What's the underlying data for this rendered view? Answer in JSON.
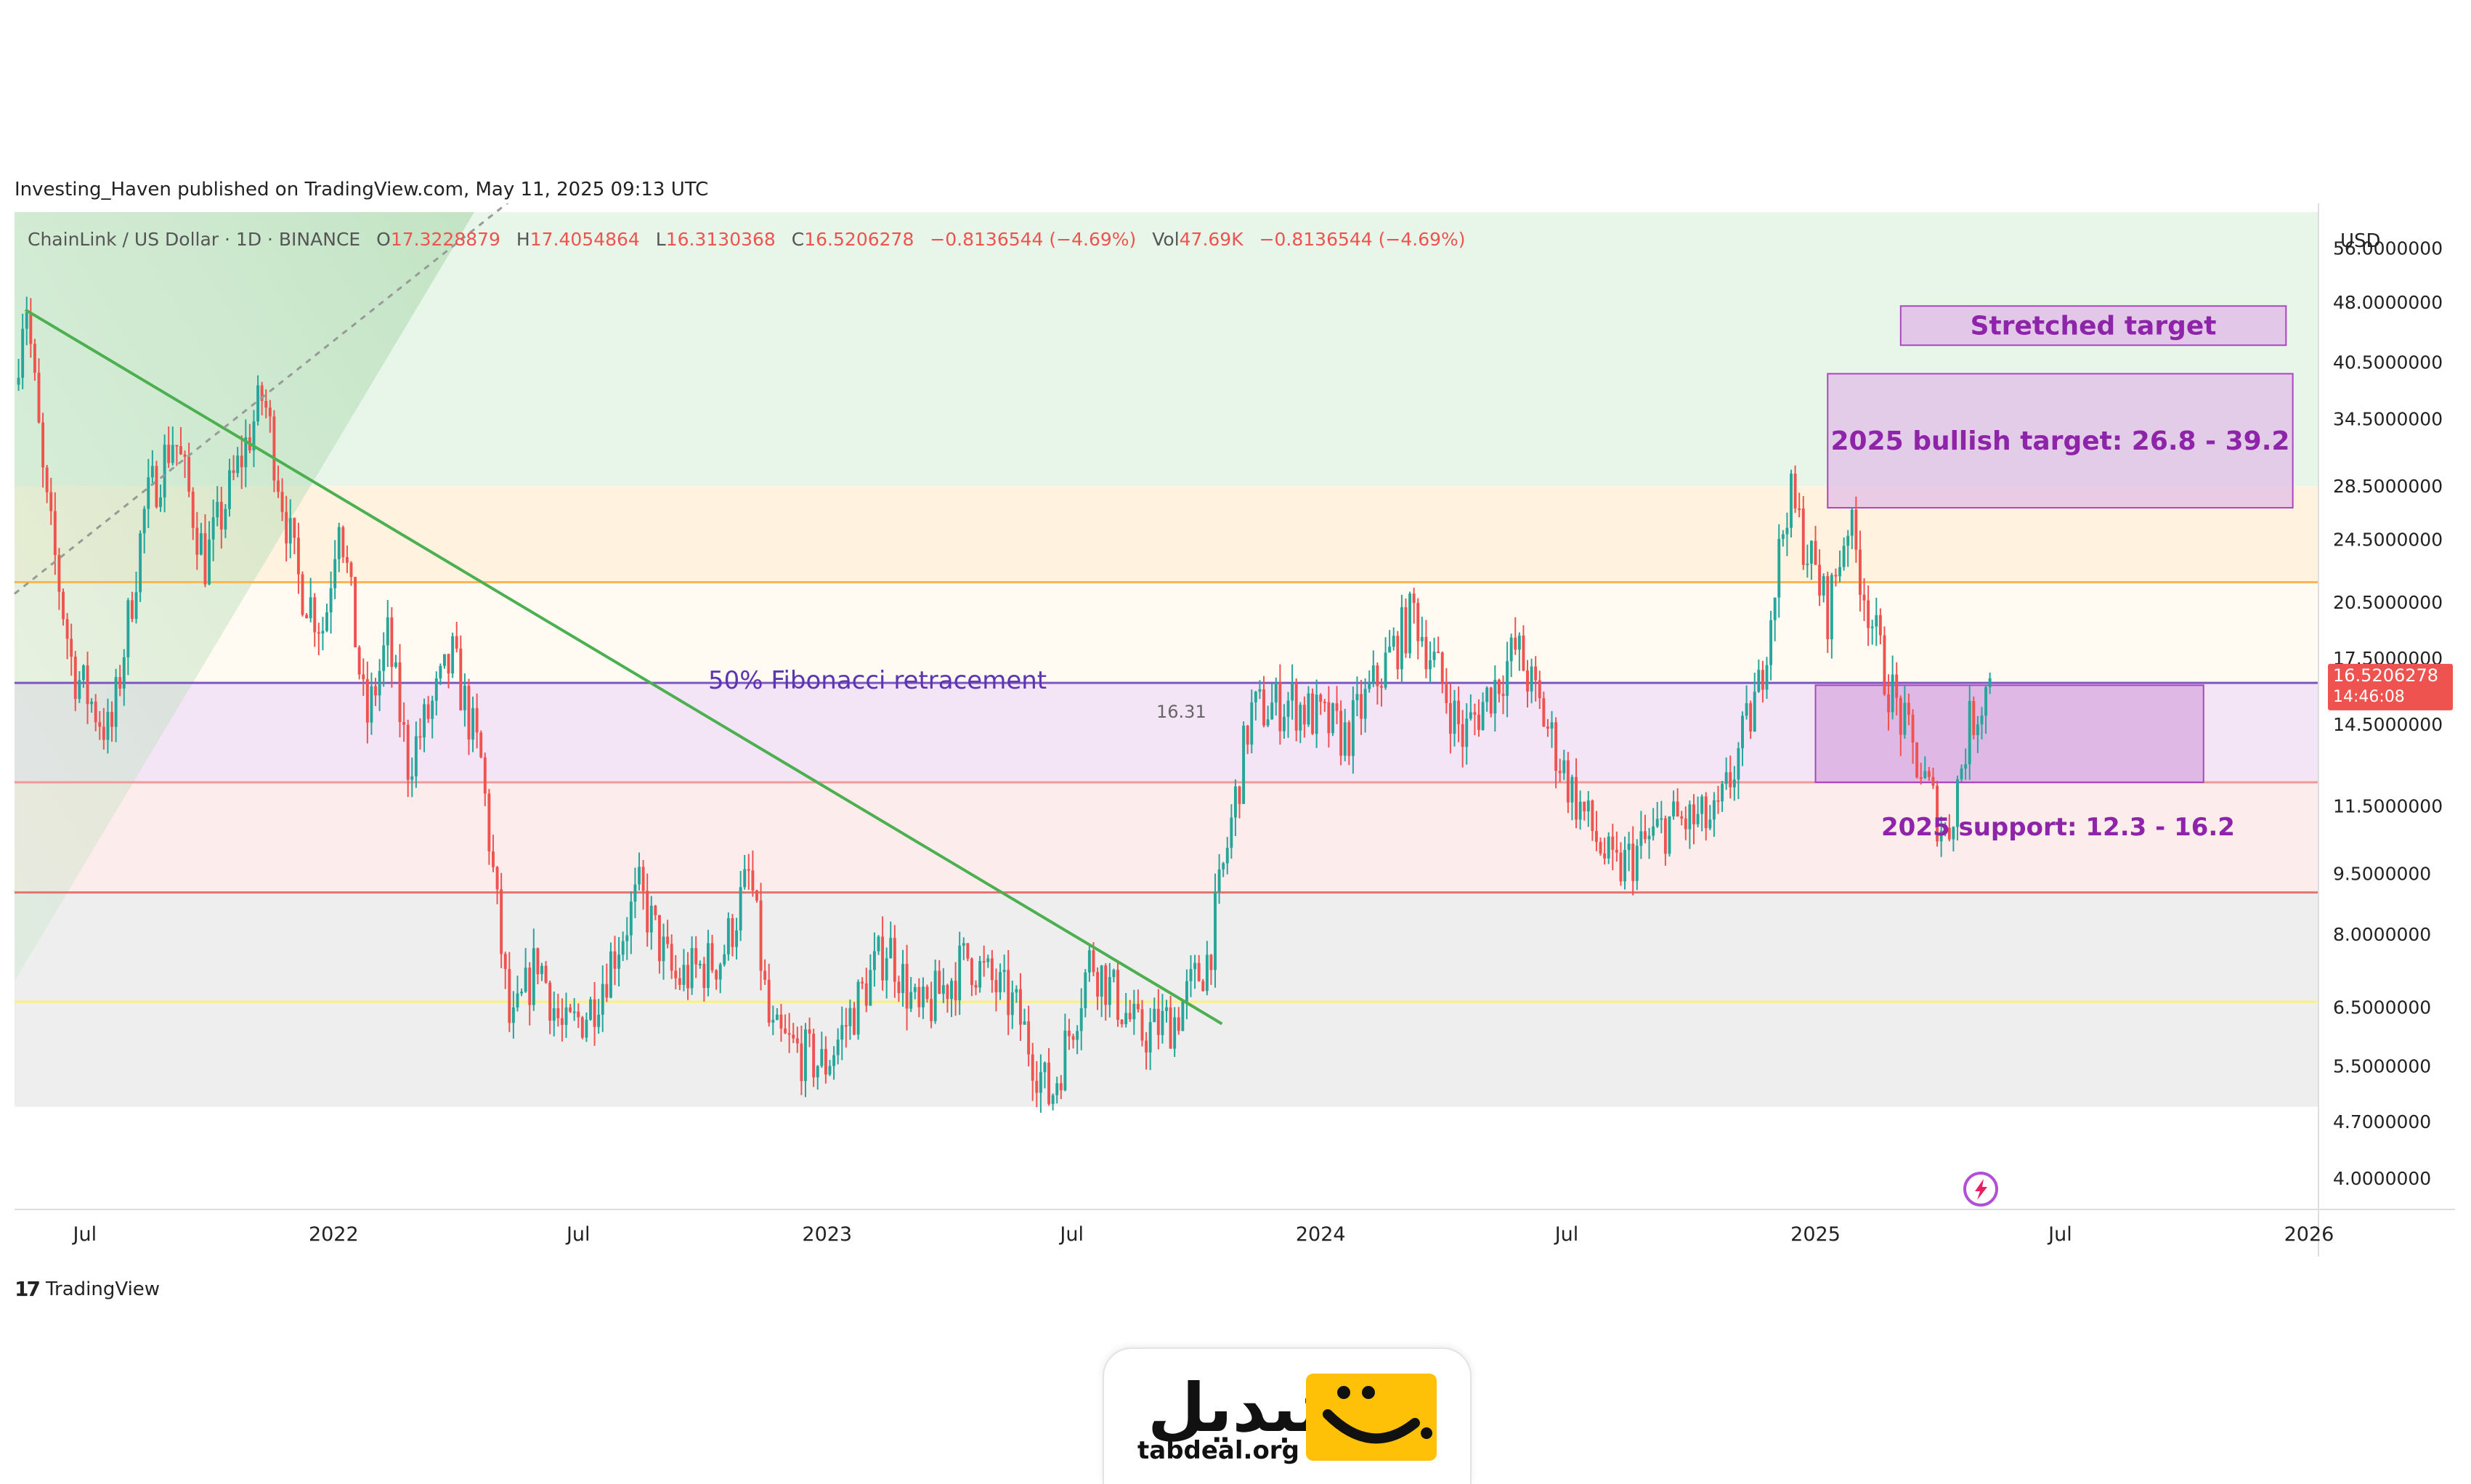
{
  "published": "Investing_Haven published on TradingView.com, May 11, 2025 09:13 UTC",
  "header": {
    "symbol": "ChainLink / US Dollar · 1D · BINANCE",
    "o_label": "O",
    "o": "17.3228879",
    "h_label": "H",
    "h": "17.4054864",
    "l_label": "L",
    "l": "16.3130368",
    "c_label": "C",
    "c": "16.5206278",
    "change": "−0.8136544 (−4.69%)",
    "vol_label": "Vol",
    "vol": "47.69K",
    "vol_change": "−0.8136544 (−4.69%)"
  },
  "currency": "USD",
  "current_price_label": "16.5206278",
  "countdown_label": "14:46:08",
  "fib_value_label": "16.31",
  "annotations": {
    "stretched": "Stretched target",
    "bullish": "2025 bullish target: 26.8 - 39.2",
    "fib": "50% Fibonacci retracement",
    "support": "2025 support: 12.3 - 16.2"
  },
  "tradingview_label": "TradingView",
  "brand": {
    "name": "تبدیل",
    "url": "tabdeal.org"
  },
  "colors": {
    "up": "#26a69a",
    "down": "#ef5350",
    "accent_purple": "#9c27b0",
    "fib_line": "#7e57c2",
    "trend_line": "#4caf50",
    "bg_band_green": "#e8f5e9",
    "bg_band_orange": "#fff3e0",
    "bg_band_pink": "#fdecec",
    "bg_band_purple": "#f3e5f5",
    "bg_band_grey": "#eeeeee",
    "price_tag": "#ef5350"
  },
  "chart_data": {
    "type": "candlestick",
    "title": "ChainLink / US Dollar · 1D · BINANCE",
    "xlabel": "",
    "ylabel": "USD",
    "y_scale": "log",
    "ylim": [
      3.7,
      62
    ],
    "xlim": [
      "2021-05-10",
      "2026-01-08"
    ],
    "y_ticks": [
      "56.0000000",
      "48.0000000",
      "40.5000000",
      "34.5000000",
      "28.5000000",
      "24.5000000",
      "20.5000000",
      "17.5000000",
      "14.5000000",
      "11.5000000",
      "9.5000000",
      "8.0000000",
      "6.5000000",
      "5.5000000",
      "4.7000000",
      "4.0000000"
    ],
    "x_ticks": [
      {
        "date": "2021-07-01",
        "label": "Jul"
      },
      {
        "date": "2022-01-01",
        "label": "2022"
      },
      {
        "date": "2022-07-01",
        "label": "Jul"
      },
      {
        "date": "2023-01-01",
        "label": "2023"
      },
      {
        "date": "2023-07-01",
        "label": "Jul"
      },
      {
        "date": "2024-01-01",
        "label": "2024"
      },
      {
        "date": "2024-07-01",
        "label": "Jul"
      },
      {
        "date": "2025-01-01",
        "label": "2025"
      },
      {
        "date": "2025-07-01",
        "label": "Jul"
      },
      {
        "date": "2026-01-01",
        "label": "2026"
      }
    ],
    "price_path": [
      [
        "2021-05-10",
        38.0
      ],
      [
        "2021-05-18",
        50.0
      ],
      [
        "2021-06-01",
        28.0
      ],
      [
        "2021-06-22",
        17.0
      ],
      [
        "2021-07-20",
        14.0
      ],
      [
        "2021-08-15",
        27.0
      ],
      [
        "2021-09-05",
        33.0
      ],
      [
        "2021-09-28",
        23.0
      ],
      [
        "2021-11-10",
        37.0
      ],
      [
        "2021-12-05",
        22.0
      ],
      [
        "2021-12-25",
        19.0
      ],
      [
        "2022-01-05",
        27.0
      ],
      [
        "2022-01-25",
        14.5
      ],
      [
        "2022-02-10",
        18.5
      ],
      [
        "2022-02-25",
        13.0
      ],
      [
        "2022-03-30",
        17.5
      ],
      [
        "2022-04-20",
        13.0
      ],
      [
        "2022-05-12",
        6.0
      ],
      [
        "2022-06-01",
        7.5
      ],
      [
        "2022-06-20",
        6.0
      ],
      [
        "2022-07-10",
        6.5
      ],
      [
        "2022-08-15",
        9.0
      ],
      [
        "2022-09-10",
        7.0
      ],
      [
        "2022-10-15",
        7.5
      ],
      [
        "2022-11-05",
        9.5
      ],
      [
        "2022-11-20",
        6.0
      ],
      [
        "2022-12-30",
        5.5
      ],
      [
        "2023-02-15",
        7.8
      ],
      [
        "2023-03-10",
        6.3
      ],
      [
        "2023-04-15",
        7.5
      ],
      [
        "2023-05-20",
        6.5
      ],
      [
        "2023-06-15",
        5.0
      ],
      [
        "2023-07-15",
        7.5
      ],
      [
        "2023-08-20",
        6.0
      ],
      [
        "2023-09-15",
        6.3
      ],
      [
        "2023-10-10",
        7.5
      ],
      [
        "2023-11-10",
        15.0
      ],
      [
        "2023-12-10",
        15.5
      ],
      [
        "2024-01-20",
        14.0
      ],
      [
        "2024-03-10",
        20.0
      ],
      [
        "2024-04-15",
        14.0
      ],
      [
        "2024-05-25",
        18.0
      ],
      [
        "2024-07-05",
        12.0
      ],
      [
        "2024-08-05",
        9.5
      ],
      [
        "2024-09-15",
        11.0
      ],
      [
        "2024-10-20",
        11.0
      ],
      [
        "2024-11-20",
        16.0
      ],
      [
        "2024-12-12",
        28.0
      ],
      [
        "2025-01-10",
        20.0
      ],
      [
        "2025-01-25",
        26.0
      ],
      [
        "2025-02-20",
        17.0
      ],
      [
        "2025-03-10",
        14.0
      ],
      [
        "2025-04-08",
        10.5
      ],
      [
        "2025-04-25",
        14.5
      ],
      [
        "2025-05-11",
        16.5
      ]
    ],
    "last_close": 16.5206278,
    "fib_level": 16.31,
    "support_zone": {
      "from": "2025-01-01",
      "to": "2025-12-15",
      "low": 12.3,
      "high": 16.2
    },
    "bullish_target_zone": {
      "from": "2025-01-10",
      "to": "2026-01-05",
      "low": 26.8,
      "high": 39.2
    },
    "stretched_target_zone": {
      "from": "2025-04-10",
      "to": "2026-01-05",
      "low": 42.5,
      "high": 47.5
    },
    "horizontal_levels": [
      {
        "value": 21.7,
        "color": "#ffb74d"
      },
      {
        "value": 16.31,
        "color": "#7e57c2"
      },
      {
        "value": 12.3,
        "color": "#ef9a9a"
      },
      {
        "value": 9.0,
        "color": "#e57373"
      },
      {
        "value": 6.6,
        "color": "#fff176"
      }
    ],
    "trend_line": [
      [
        "2021-05-18",
        47.0
      ],
      [
        "2023-10-20",
        6.2
      ]
    ],
    "dashed_line": [
      [
        "2021-05-10",
        21.0
      ],
      [
        "2022-06-10",
        70.0
      ]
    ]
  }
}
